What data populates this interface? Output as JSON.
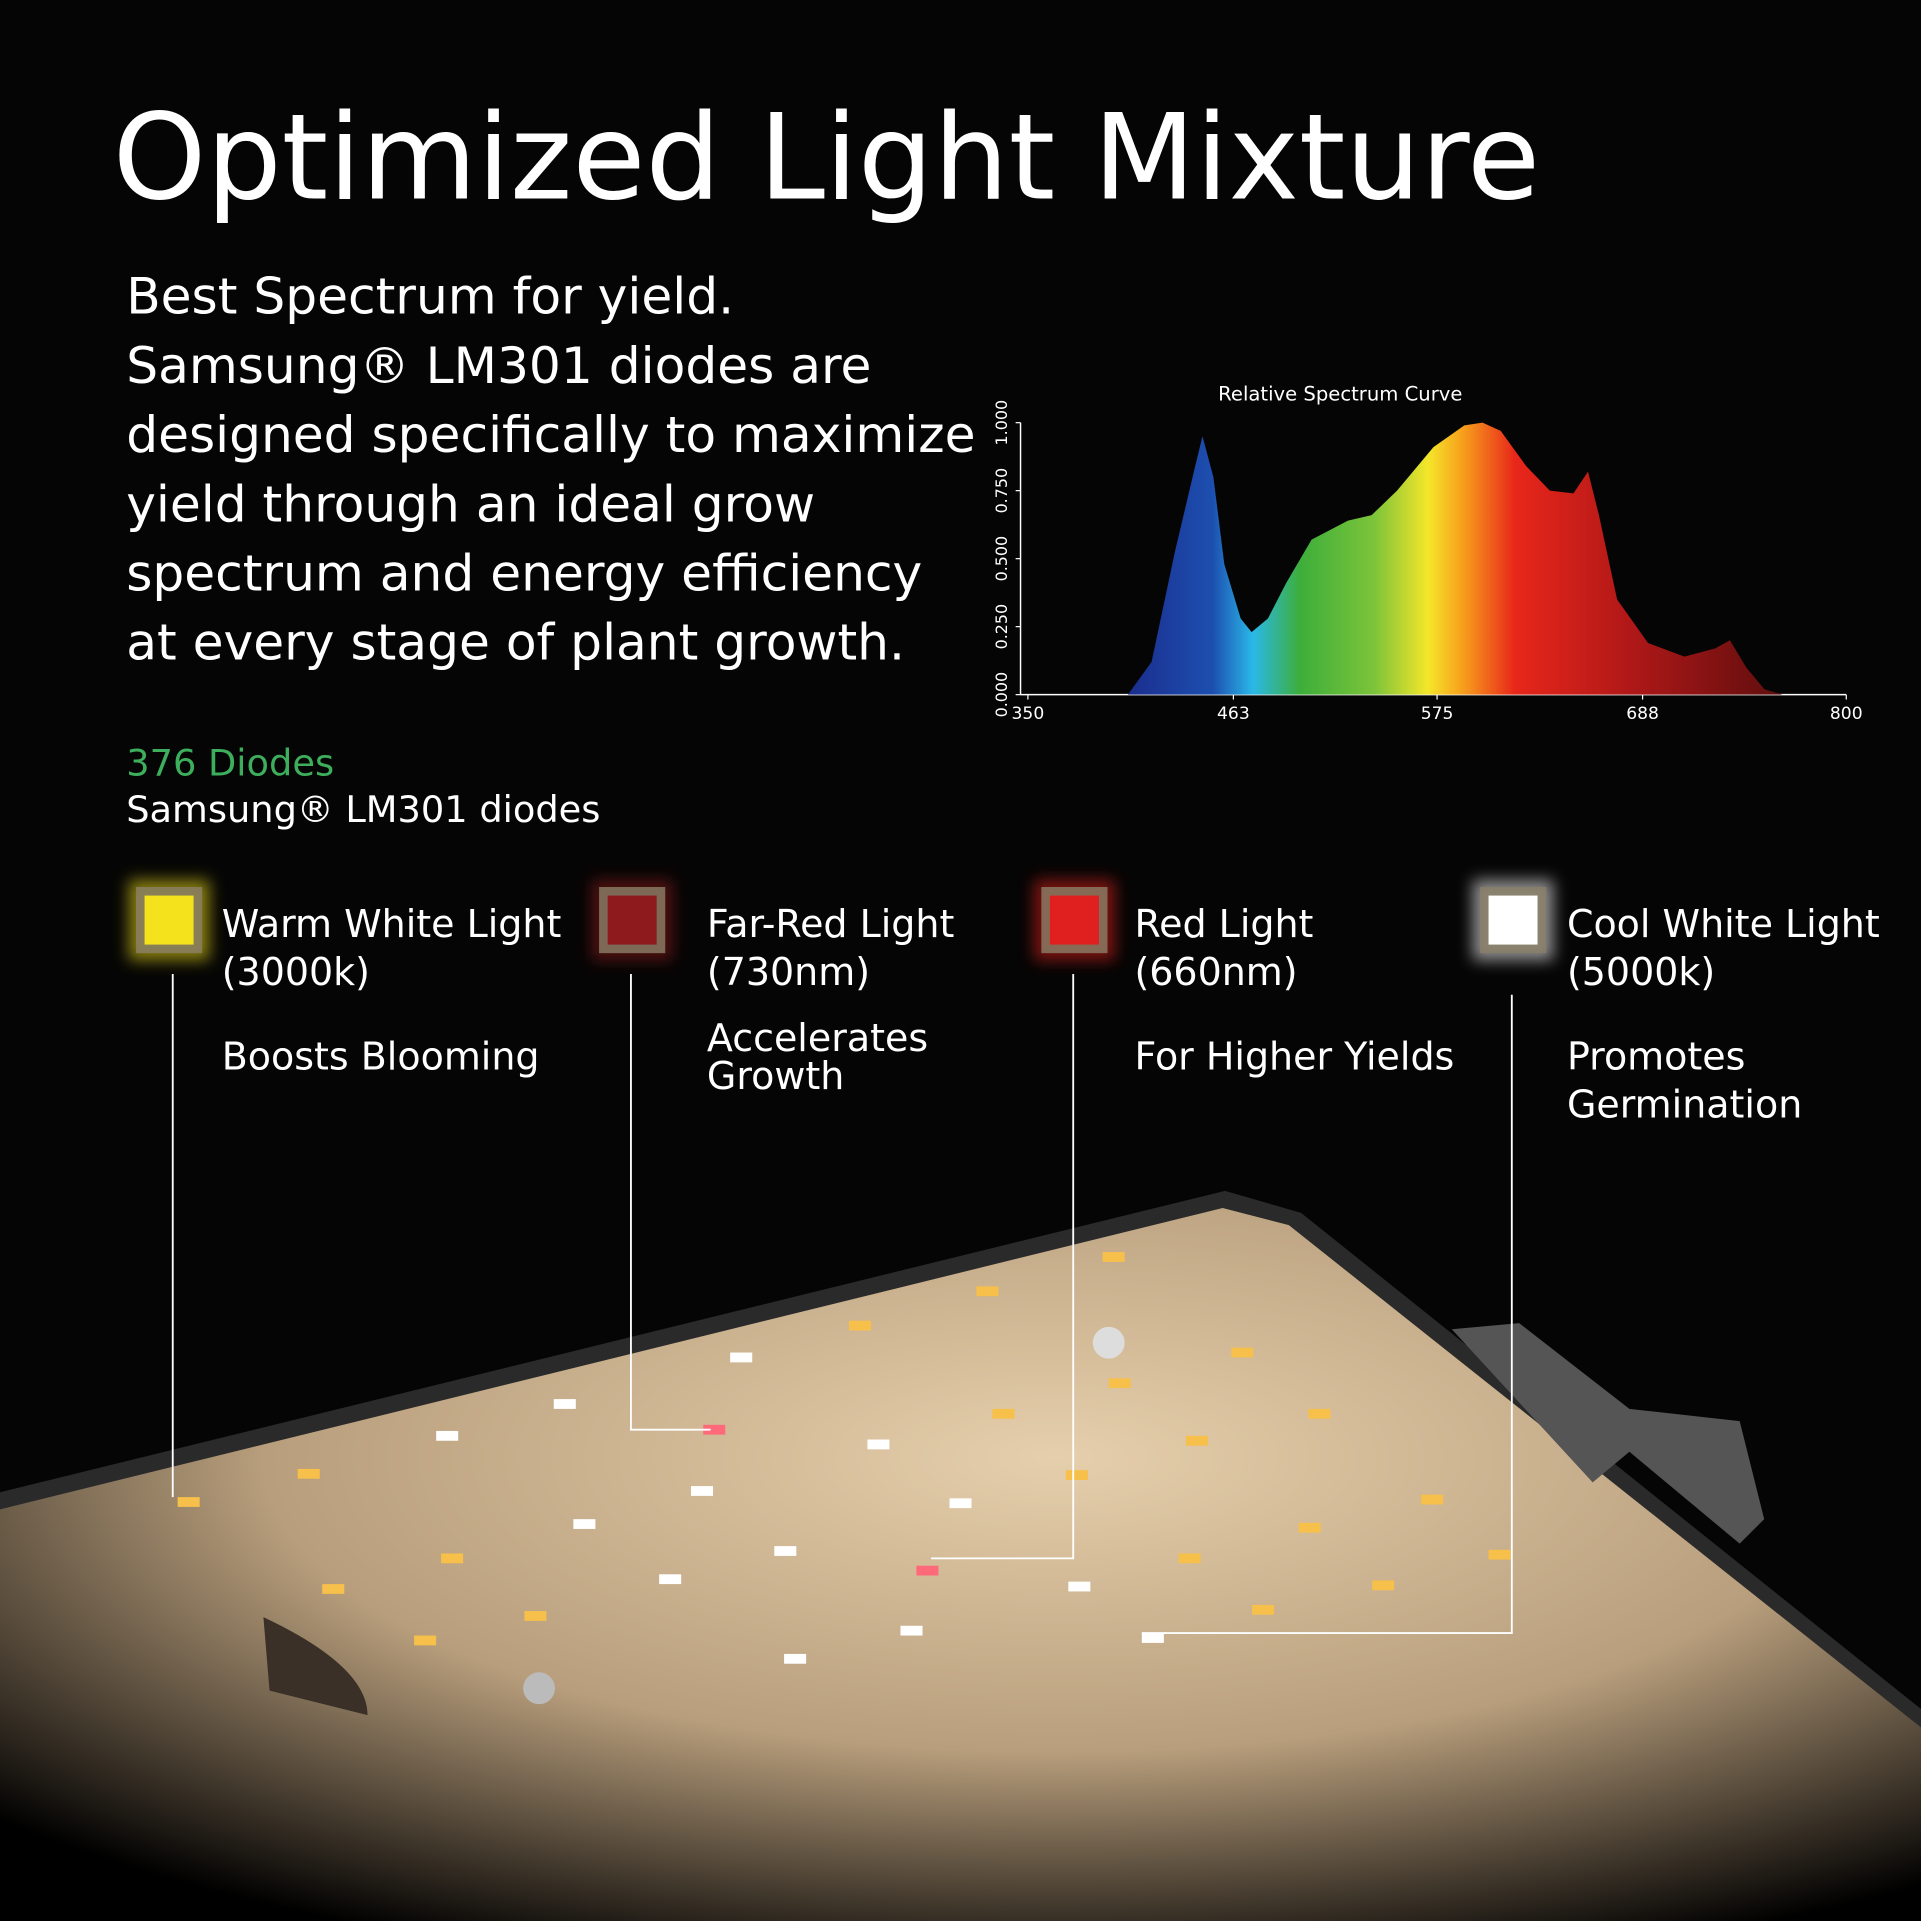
{
  "header": {
    "title": "Optimized Light Mixture"
  },
  "intro": {
    "lines": [
      "Best Spectrum for yield.",
      "Samsung® LM301 diodes are",
      "designed specifically to maximize",
      "yield through an ideal grow",
      "spectrum and energy efficiency",
      "at every stage of plant growth."
    ]
  },
  "diodes": {
    "count": "376 Diodes",
    "model": "Samsung® LM301 diodes"
  },
  "lights": [
    {
      "color": "#f4e21c",
      "name_lines": [
        "Warm White Light",
        "(3000k)"
      ],
      "description_lines": [
        "Boosts Blooming"
      ]
    },
    {
      "color": "#8e1a1e",
      "name_lines": [
        "Far-Red Light",
        "(730nm)"
      ],
      "description_lines": [
        "Accelerates",
        "Growth"
      ]
    },
    {
      "color": "#e0201f",
      "name_lines": [
        "Red Light",
        "(660nm)"
      ],
      "description_lines": [
        "For Higher Yields"
      ]
    },
    {
      "color": "#ffffff",
      "name_lines": [
        "Cool White Light",
        "(5000k)"
      ],
      "description_lines": [
        "Promotes",
        "Germination"
      ]
    }
  ],
  "chart_data": {
    "type": "area",
    "title": "Relative Spectrum Curve",
    "x": [
      405,
      418,
      431,
      442,
      446,
      452,
      458,
      467,
      473,
      482,
      492,
      506,
      526,
      539,
      553,
      573,
      590,
      600,
      610,
      624,
      637,
      650,
      658,
      664,
      674,
      691,
      711,
      728,
      736,
      745,
      755,
      765
    ],
    "values": [
      0,
      0.12,
      0.53,
      0.84,
      0.95,
      0.8,
      0.48,
      0.28,
      0.23,
      0.28,
      0.41,
      0.57,
      0.64,
      0.66,
      0.75,
      0.91,
      0.99,
      1,
      0.97,
      0.84,
      0.75,
      0.74,
      0.82,
      0.66,
      0.35,
      0.19,
      0.14,
      0.17,
      0.2,
      0.1,
      0.02,
      0
    ],
    "xlim": [
      350,
      800
    ],
    "ylim": [
      0,
      1
    ],
    "xticks": [
      350,
      463,
      575,
      688,
      800
    ],
    "yticks": [
      {
        "value": 0,
        "label": "0.000"
      },
      {
        "value": 0.25,
        "label": "0.250"
      },
      {
        "value": 0.5,
        "label": "0.500"
      },
      {
        "value": 0.75,
        "label": "0.750"
      },
      {
        "value": 1,
        "label": "1.000"
      }
    ]
  }
}
